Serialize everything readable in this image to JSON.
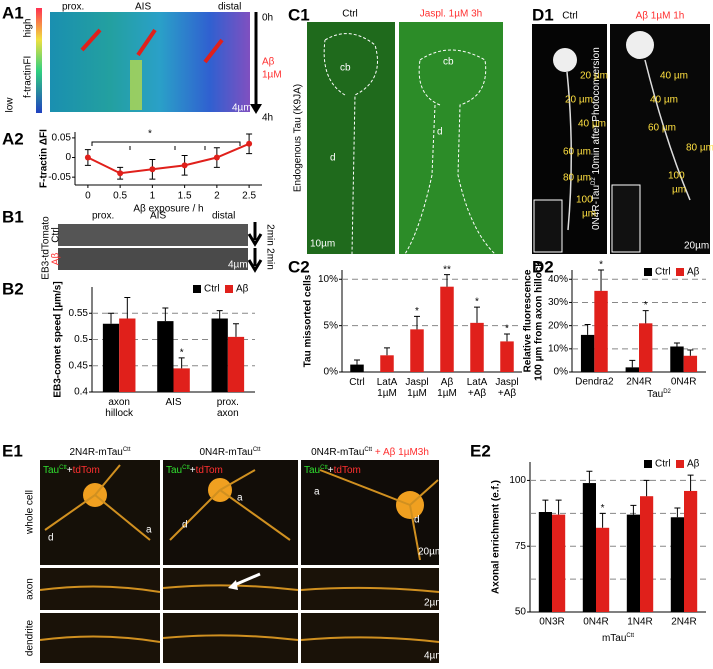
{
  "chart_data": [
    {
      "type": "line",
      "panel_label": "A2",
      "ylabel": "F-tractin ΔFI",
      "xlabel": "Aβ exposure / h",
      "x": [
        0,
        0.5,
        1,
        1.5,
        2,
        2.5
      ],
      "series": [
        {
          "color": "#e0201b",
          "values": [
            0,
            -0.04,
            -0.03,
            -0.02,
            0,
            0.035
          ],
          "errors": [
            0.02,
            0.015,
            0.025,
            0.025,
            0.025,
            0.025
          ]
        }
      ],
      "xlim": [
        -0.2,
        2.7
      ],
      "ylim": [
        -0.07,
        0.065
      ],
      "xticks": [
        0,
        0.5,
        1,
        1.5,
        2,
        2.5
      ],
      "yticks": [
        -0.05,
        0,
        0.05
      ],
      "annotation": "*",
      "grid": false
    },
    {
      "type": "bar",
      "panel_label": "B2",
      "ylabel": "EB3-comet speed [µm/s]",
      "categories": [
        "axon hillock",
        "AIS",
        "prox. axon"
      ],
      "series": [
        {
          "name": "Ctrl",
          "color": "#000000",
          "values": [
            0.53,
            0.535,
            0.54
          ],
          "errors": [
            0.02,
            0.025,
            0.015
          ],
          "significance": [
            null,
            null,
            null
          ]
        },
        {
          "name": "Aβ",
          "color": "#e0201b",
          "values": [
            0.54,
            0.445,
            0.505
          ],
          "errors": [
            0.04,
            0.02,
            0.025
          ],
          "significance": [
            null,
            "*",
            null
          ]
        }
      ],
      "ylim": [
        0.4,
        0.6
      ],
      "yticks": [
        0.4,
        0.45,
        0.5,
        0.55
      ],
      "grid": true,
      "legend": "top-right"
    },
    {
      "type": "bar",
      "panel_label": "C2",
      "ylabel": "Tau missorted cells",
      "categories": [
        "Ctrl",
        "LatA 1µM",
        "Jaspl 1µM",
        "Aβ 1µM",
        "LatA +Aβ",
        "Jaspl +Aβ"
      ],
      "series": [
        {
          "colors": [
            "#000000",
            "#e0201b",
            "#e0201b",
            "#e0201b",
            "#e0201b",
            "#e0201b"
          ],
          "values": [
            0.8,
            1.8,
            4.6,
            9.2,
            5.3,
            3.3
          ],
          "errors": [
            0.5,
            0.8,
            1.4,
            1.3,
            1.7,
            0.8
          ],
          "significance": [
            null,
            null,
            "*",
            "**",
            "*",
            "*"
          ]
        }
      ],
      "ylim": [
        0,
        11
      ],
      "yticks": [
        {
          "value": 0,
          "label": "0%"
        },
        {
          "value": 5,
          "label": "5%"
        },
        {
          "value": 10,
          "label": "10%"
        }
      ],
      "grid": true
    },
    {
      "type": "bar",
      "panel_label": "D2",
      "ylabel": [
        "Relative fluorescence",
        "100 µm from axon hillock"
      ],
      "categories": [
        "Dendra2",
        "2N4R",
        "0N4R"
      ],
      "xlabel": {
        "base": "Tau",
        "sup": "D2"
      },
      "series": [
        {
          "name": "Ctrl",
          "color": "#000000",
          "values": [
            16,
            2,
            11
          ],
          "errors": [
            4.5,
            3,
            1.5
          ],
          "significance": [
            null,
            null,
            null
          ]
        },
        {
          "name": "Aβ",
          "color": "#e0201b",
          "values": [
            35,
            21,
            7
          ],
          "errors": [
            9,
            5.5,
            2.5
          ],
          "significance": [
            "*",
            "*",
            null
          ]
        }
      ],
      "ylim": [
        0,
        44
      ],
      "yticks": [
        {
          "value": 0,
          "label": "0%"
        },
        {
          "value": 10,
          "label": "10%"
        },
        {
          "value": 20,
          "label": "20%"
        },
        {
          "value": 30,
          "label": "30%"
        },
        {
          "value": 40,
          "label": "40%"
        }
      ],
      "grid": true,
      "legend": "top-right"
    },
    {
      "type": "bar",
      "panel_label": "E2",
      "ylabel": "Axonal enrichment (e.f.)",
      "categories": [
        "0N3R",
        "0N4R",
        "1N4R",
        "2N4R"
      ],
      "xlabel": {
        "base": "mTau",
        "sup": "Ctt"
      },
      "series": [
        {
          "name": "Ctrl",
          "color": "#000000",
          "values": [
            88,
            99,
            87,
            86
          ],
          "errors": [
            4.5,
            4.5,
            3.5,
            3.5
          ],
          "significance": [
            null,
            null,
            null,
            null
          ]
        },
        {
          "name": "Aβ",
          "color": "#e0201b",
          "values": [
            87,
            82,
            94,
            96
          ],
          "errors": [
            5.5,
            5.5,
            6,
            6
          ],
          "significance": [
            null,
            "*",
            null,
            null
          ]
        }
      ],
      "ylim": [
        50,
        107
      ],
      "yticks": [
        50,
        75,
        100
      ],
      "grid_lines": [
        62.5,
        87.5
      ],
      "grid": true,
      "legend": "top-right"
    }
  ],
  "panels": {
    "A1": {
      "label": "A1",
      "axis_title": "f-tractinFI",
      "high": "high",
      "low": "low",
      "regions": [
        "prox.",
        "AIS",
        "distal"
      ],
      "time_start": "0h",
      "time_end": "4h",
      "treatment": [
        "Aβ",
        "1µM"
      ],
      "scale": "4µm"
    },
    "B1": {
      "label": "B1",
      "regions": [
        "prox.",
        "AIS",
        "distal"
      ],
      "row_title": "EB3-tdTomato",
      "rows": [
        "Ctrl",
        "Aβ"
      ],
      "time": "2min",
      "scale": "4µm"
    },
    "C1": {
      "label": "C1",
      "columns": [
        "Ctrl",
        "Jaspl. 1µM 3h"
      ],
      "side": "Endogenous Tau (K9JA)",
      "cb": "cb",
      "d": "d",
      "scale": "10µm"
    },
    "D1": {
      "label": "D1",
      "columns": [
        "Ctrl",
        "Aβ 1µM 1h"
      ],
      "side": {
        "base": "0N4R-Tau",
        "sup": "D2",
        "rest": " 10min after Photoconversion"
      },
      "distances": [
        "20 µm",
        "40 µm",
        "60 µm",
        "80 µm"
      ],
      "end": [
        "100",
        "µm"
      ],
      "scale": "20µm"
    },
    "E1": {
      "label": "E1",
      "columns": [
        {
          "base": "2N4R-mTau",
          "sup": "Ctt",
          "extra": ""
        },
        {
          "base": "0N4R-mTau",
          "sup": "Ctt",
          "extra": ""
        },
        {
          "base": "0N4R-mTau",
          "sup": "Ctt",
          "extra": " + Aβ 1µM3h"
        }
      ],
      "stain": {
        "base": "Tau",
        "sup": "Ctt",
        "plus": "+",
        "tom": "tdTom"
      },
      "rows": [
        "whole cell",
        "axon",
        "dendrite"
      ],
      "d": "d",
      "a": "a",
      "scales": [
        "20µm",
        "2µm",
        "4µm"
      ]
    }
  }
}
